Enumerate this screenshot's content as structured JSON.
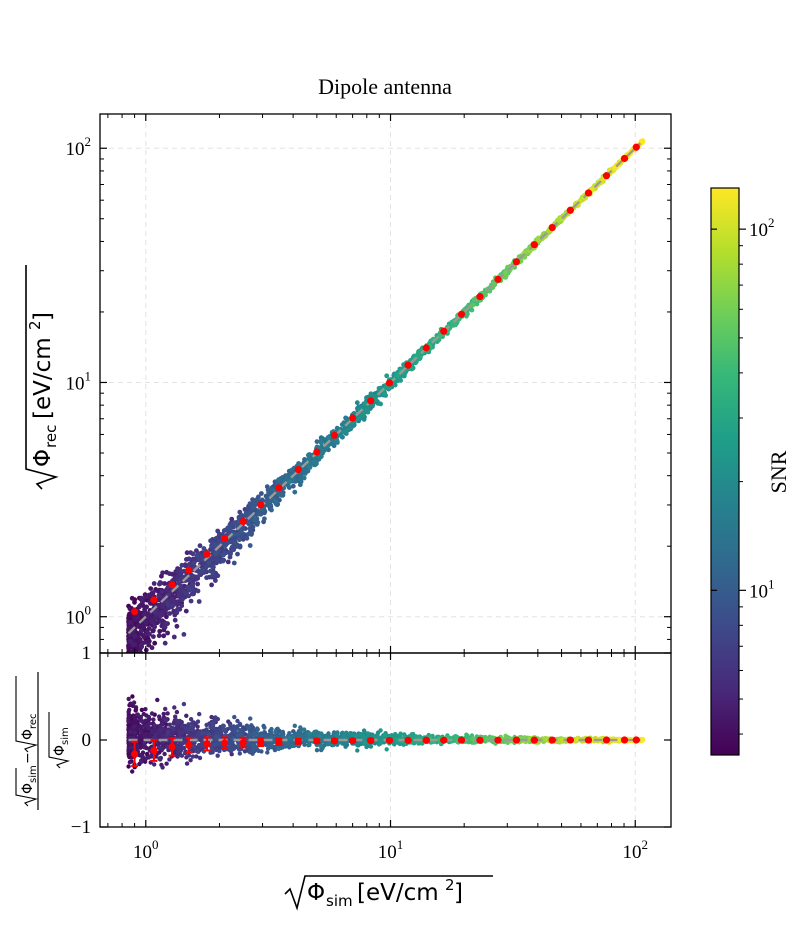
{
  "chart_data": {
    "type": "scatter",
    "title": "Dipole antenna",
    "xlabel": "Φ_sim [eV/cm²] (square root)",
    "ylabel": "Φ_rec [eV/cm²] (square root)",
    "residual_ylabel": "(√Φ_sim − √Φ_rec) / √Φ_sim",
    "xscale": "log",
    "yscale": "log",
    "xlim": [
      0.65,
      140
    ],
    "ylim": [
      0.7,
      140
    ],
    "residual_ylim": [
      -1,
      1
    ],
    "x_ticks": [
      {
        "value": 1,
        "base": "10",
        "exp": "0"
      },
      {
        "value": 10,
        "base": "10",
        "exp": "1"
      },
      {
        "value": 100,
        "base": "10",
        "exp": "2"
      }
    ],
    "y_ticks": [
      {
        "value": 1,
        "base": "10",
        "exp": "0"
      },
      {
        "value": 10,
        "base": "10",
        "exp": "1"
      },
      {
        "value": 100,
        "base": "10",
        "exp": "2"
      }
    ],
    "residual_ticks": [
      {
        "value": 1,
        "label": "1"
      },
      {
        "value": 0,
        "label": "0"
      },
      {
        "value": -1,
        "label": "−1"
      }
    ],
    "grid": true,
    "reference_line": {
      "style": "dashed",
      "color": "#999999",
      "from": 0.85,
      "to": 105
    },
    "binned_means": {
      "color": "#ff0000",
      "x": [
        0.9,
        1.08,
        1.28,
        1.5,
        1.78,
        2.1,
        2.5,
        2.95,
        3.5,
        4.2,
        5.0,
        5.9,
        7.0,
        8.3,
        9.9,
        11.8,
        14.0,
        16.5,
        19.5,
        23.2,
        27.5,
        32.7,
        38.7,
        45.8,
        54.3,
        64.4,
        76.3,
        90.4,
        101
      ],
      "y": [
        1.05,
        1.18,
        1.37,
        1.58,
        1.85,
        2.16,
        2.55,
        3.0,
        3.55,
        4.25,
        5.05,
        5.95,
        7.05,
        8.35,
        9.95,
        11.85,
        14.05,
        16.55,
        19.55,
        23.25,
        27.55,
        32.75,
        38.75,
        45.85,
        54.35,
        64.45,
        76.35,
        90.45,
        101
      ],
      "residual": [
        -0.16,
        -0.12,
        -0.08,
        -0.06,
        -0.045,
        -0.035,
        -0.03,
        -0.025,
        -0.02,
        -0.015,
        -0.012,
        -0.01,
        -0.008,
        -0.006,
        -0.005,
        -0.004,
        -0.003,
        -0.003,
        -0.002,
        -0.002,
        -0.002,
        -0.001,
        -0.001,
        -0.001,
        -0.001,
        -0.001,
        0,
        0,
        0
      ],
      "residual_err": [
        0.14,
        0.12,
        0.1,
        0.085,
        0.075,
        0.065,
        0.055,
        0.045,
        0.035,
        0.028,
        0.022,
        0.018,
        0.015,
        0.012,
        0.01,
        0.009,
        0.008,
        0.007,
        0.006,
        0.005,
        0.005,
        0.004,
        0.004,
        0.003,
        0.003,
        0.003,
        0.002,
        0.002,
        0.002
      ]
    },
    "scatter_cloud": {
      "x_range": [
        0.85,
        108
      ],
      "color_by": "SNR",
      "n_points": 2400,
      "relative_spread_at_x1": 0.22
    },
    "colorbar": {
      "label": "SNR",
      "scale": "log",
      "colormap": "viridis",
      "range": [
        3.5,
        130
      ],
      "ticks": [
        {
          "value": 10,
          "base": "10",
          "exp": "1"
        },
        {
          "value": 100,
          "base": "10",
          "exp": "2"
        }
      ],
      "colors": [
        "#440154",
        "#482878",
        "#3e4989",
        "#31688e",
        "#26828e",
        "#1f9e89",
        "#35b779",
        "#6ece58",
        "#b5de2b",
        "#fde725"
      ]
    }
  }
}
